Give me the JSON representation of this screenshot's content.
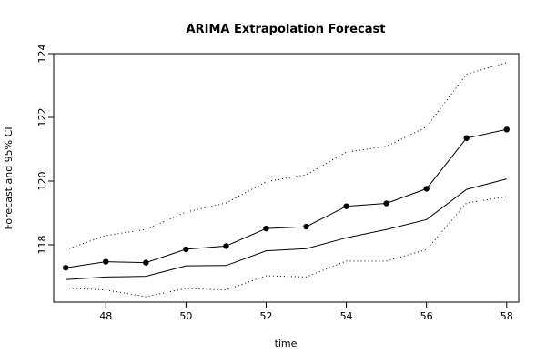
{
  "chart_data": {
    "type": "line",
    "title": "ARIMA Extrapolation Forecast",
    "xlabel": "time",
    "ylabel": "Forecast and 95% CI",
    "xlim": [
      46.7,
      58.3
    ],
    "ylim": [
      116.2,
      124.0
    ],
    "x_ticks": [
      48,
      50,
      52,
      54,
      56,
      58
    ],
    "y_ticks": [
      118,
      120,
      122,
      124
    ],
    "grid": false,
    "legend": "none",
    "x": [
      47,
      48,
      49,
      50,
      51,
      52,
      53,
      54,
      55,
      56,
      57,
      58
    ],
    "series": [
      {
        "style": "line-points",
        "values": [
          117.28,
          117.47,
          117.44,
          117.86,
          117.96,
          118.51,
          118.57,
          119.21,
          119.3,
          119.76,
          121.35,
          121.62
        ]
      },
      {
        "style": "line",
        "values": [
          116.91,
          116.99,
          117.01,
          117.34,
          117.35,
          117.81,
          117.88,
          118.22,
          118.48,
          118.79,
          119.74,
          120.07
        ]
      },
      {
        "style": "dotted",
        "values": [
          117.85,
          118.29,
          118.48,
          119.03,
          119.31,
          119.98,
          120.2,
          120.91,
          121.09,
          121.7,
          123.36,
          123.72
        ]
      },
      {
        "style": "dotted",
        "values": [
          116.64,
          116.58,
          116.37,
          116.63,
          116.58,
          117.03,
          116.99,
          117.49,
          117.49,
          117.85,
          119.31,
          119.51
        ]
      }
    ]
  }
}
